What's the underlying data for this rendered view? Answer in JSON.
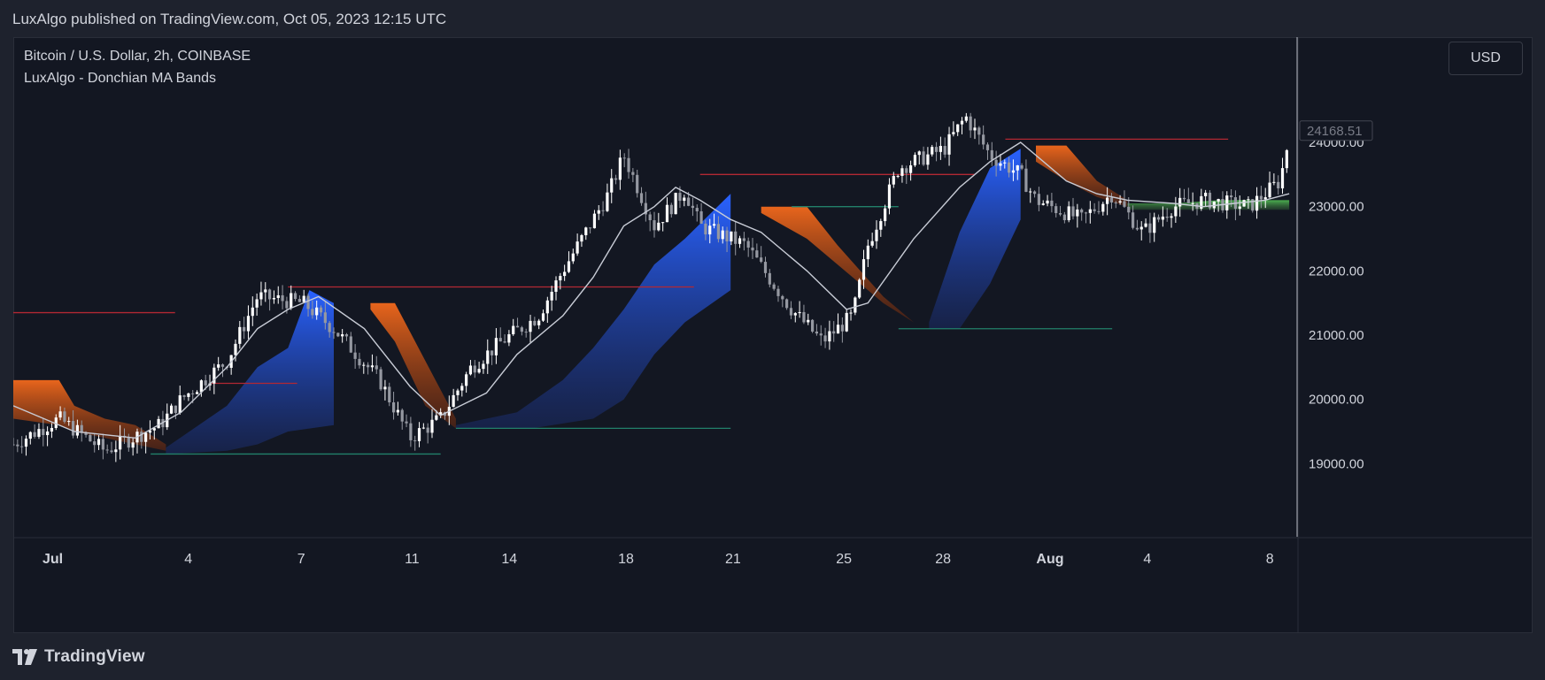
{
  "header": {
    "published": "LuxAlgo published on TradingView.com, Oct 05, 2023 12:15 UTC"
  },
  "legend": {
    "title": "Bitcoin / U.S. Dollar, 2h, COINBASE",
    "indicator": "LuxAlgo - Donchian MA Bands"
  },
  "currency": "USD",
  "footer": {
    "brand": "TradingView"
  },
  "colors": {
    "bg": "#131722",
    "upper_band": "#e8651c",
    "lower_band": "#2962ff",
    "mixed": "#4caf50",
    "ma": "#c8ccd6",
    "resistance": "#b22833",
    "support": "#22806a",
    "candle_up": "#ffffff",
    "candle_down": "#9598a1"
  },
  "chart_data": {
    "type": "candlestick",
    "symbol": "Bitcoin / U.S. Dollar",
    "interval": "2h",
    "exchange": "COINBASE",
    "ylim": [
      18000,
      25500
    ],
    "y_ticks": [
      "19000.00",
      "20000.00",
      "21000.00",
      "22000.00",
      "23000.00",
      "24000.00"
    ],
    "last_price": "24168.51",
    "x_tick_labels": [
      "Jul",
      "4",
      "7",
      "11",
      "14",
      "18",
      "21",
      "25",
      "28",
      "Aug",
      "4",
      "8"
    ],
    "price_path": [
      [
        0,
        19300
      ],
      [
        1.5,
        19700
      ],
      [
        3,
        19200
      ],
      [
        4.8,
        19600
      ],
      [
        5.5,
        20000
      ],
      [
        7,
        20600
      ],
      [
        8,
        21600
      ],
      [
        9.5,
        21500
      ],
      [
        10.5,
        21100
      ],
      [
        12,
        20300
      ],
      [
        13,
        19400
      ],
      [
        14,
        19700
      ],
      [
        15,
        20500
      ],
      [
        16,
        20900
      ],
      [
        17.2,
        21300
      ],
      [
        18,
        22000
      ],
      [
        19.5,
        23200
      ],
      [
        20,
        23800
      ],
      [
        21,
        22700
      ],
      [
        22,
        23250
      ],
      [
        22.5,
        22700
      ],
      [
        24,
        22400
      ],
      [
        25.5,
        21400
      ],
      [
        26.5,
        20900
      ],
      [
        27.5,
        21300
      ],
      [
        28,
        22400
      ],
      [
        29,
        23600
      ],
      [
        30.5,
        23900
      ],
      [
        31.2,
        24400
      ],
      [
        32,
        23800
      ],
      [
        33,
        23500
      ],
      [
        33.5,
        23100
      ],
      [
        35,
        22800
      ],
      [
        36,
        23200
      ],
      [
        37,
        22600
      ],
      [
        38,
        23000
      ],
      [
        39,
        23100
      ],
      [
        40.5,
        23000
      ],
      [
        41.5,
        23400
      ],
      [
        41.8,
        24100
      ]
    ],
    "ma_path": [
      [
        0,
        19900
      ],
      [
        2,
        19500
      ],
      [
        4,
        19400
      ],
      [
        5.5,
        19800
      ],
      [
        7,
        20500
      ],
      [
        8,
        21100
      ],
      [
        9,
        21400
      ],
      [
        10,
        21600
      ],
      [
        11.5,
        21100
      ],
      [
        13,
        20200
      ],
      [
        14,
        19750
      ],
      [
        15.5,
        20100
      ],
      [
        16.5,
        20700
      ],
      [
        18,
        21300
      ],
      [
        19,
        21900
      ],
      [
        20,
        22700
      ],
      [
        21,
        23000
      ],
      [
        21.7,
        23300
      ],
      [
        22.5,
        23100
      ],
      [
        23.5,
        22800
      ],
      [
        24.5,
        22600
      ],
      [
        26,
        22000
      ],
      [
        27.3,
        21400
      ],
      [
        28,
        21500
      ],
      [
        29.5,
        22500
      ],
      [
        31,
        23300
      ],
      [
        32,
        23700
      ],
      [
        33,
        24000
      ],
      [
        34.5,
        23400
      ],
      [
        35.5,
        23200
      ],
      [
        36.5,
        23100
      ],
      [
        38,
        23050
      ],
      [
        39,
        23000
      ],
      [
        40,
        23050
      ],
      [
        41,
        23100
      ],
      [
        41.8,
        23200
      ]
    ],
    "bands": [
      {
        "kind": "upper",
        "x0": 0,
        "x1": 5,
        "top": [
          [
            0,
            20300
          ],
          [
            1.5,
            20300
          ],
          [
            2,
            19900
          ],
          [
            3,
            19700
          ],
          [
            4,
            19600
          ],
          [
            5,
            19300
          ]
        ],
        "bottom": [
          [
            0,
            19700
          ],
          [
            1.5,
            19600
          ],
          [
            2,
            19500
          ],
          [
            3,
            19400
          ],
          [
            4,
            19300
          ],
          [
            5,
            19200
          ]
        ]
      },
      {
        "kind": "lower",
        "x0": 5,
        "x1": 10.5,
        "top": [
          [
            5,
            19250
          ],
          [
            7,
            19900
          ],
          [
            8,
            20500
          ],
          [
            9,
            20800
          ],
          [
            9.7,
            21700
          ],
          [
            10.5,
            21500
          ]
        ],
        "bottom": [
          [
            5,
            19150
          ],
          [
            7,
            19200
          ],
          [
            8,
            19300
          ],
          [
            9,
            19500
          ],
          [
            10.5,
            19600
          ]
        ]
      },
      {
        "kind": "upper",
        "x0": 11.7,
        "x1": 14.5,
        "top": [
          [
            11.7,
            21500
          ],
          [
            12.5,
            21500
          ],
          [
            13.5,
            20600
          ],
          [
            14.5,
            19700
          ]
        ],
        "bottom": [
          [
            11.7,
            21400
          ],
          [
            12.5,
            20900
          ],
          [
            13.5,
            19900
          ],
          [
            14.5,
            19550
          ]
        ]
      },
      {
        "kind": "lower",
        "x0": 14.5,
        "x1": 23.5,
        "top": [
          [
            14.5,
            19600
          ],
          [
            16.5,
            19800
          ],
          [
            18,
            20300
          ],
          [
            19,
            20800
          ],
          [
            20,
            21400
          ],
          [
            21,
            22100
          ],
          [
            22,
            22500
          ],
          [
            23.5,
            23200
          ]
        ],
        "bottom": [
          [
            14.5,
            19550
          ],
          [
            17,
            19550
          ],
          [
            19,
            19700
          ],
          [
            20,
            20000
          ],
          [
            21,
            20700
          ],
          [
            22,
            21200
          ],
          [
            23.5,
            21700
          ]
        ]
      },
      {
        "kind": "upper",
        "x0": 24.5,
        "x1": 29.5,
        "top": [
          [
            24.5,
            23000
          ],
          [
            26,
            23000
          ],
          [
            27,
            22400
          ],
          [
            28.5,
            21600
          ],
          [
            29.5,
            21200
          ]
        ],
        "bottom": [
          [
            24.5,
            22900
          ],
          [
            26,
            22500
          ],
          [
            27,
            22100
          ],
          [
            28.5,
            21500
          ],
          [
            29.5,
            21200
          ]
        ]
      },
      {
        "kind": "lower",
        "x0": 30,
        "x1": 33,
        "top": [
          [
            30,
            21200
          ],
          [
            31,
            22600
          ],
          [
            32,
            23600
          ],
          [
            33,
            23900
          ]
        ],
        "bottom": [
          [
            30,
            21100
          ],
          [
            31,
            21100
          ],
          [
            32,
            21800
          ],
          [
            33,
            22800
          ]
        ]
      },
      {
        "kind": "upper",
        "x0": 33.5,
        "x1": 36.5,
        "top": [
          [
            33.5,
            23950
          ],
          [
            34.5,
            23950
          ],
          [
            35.5,
            23400
          ],
          [
            36.5,
            23100
          ]
        ],
        "bottom": [
          [
            33.5,
            23700
          ],
          [
            34.5,
            23400
          ],
          [
            35.5,
            23150
          ],
          [
            36.5,
            23000
          ]
        ]
      },
      {
        "kind": "mixed",
        "x0": 36.5,
        "x1": 41.8,
        "top": [
          [
            36.5,
            23050
          ],
          [
            38,
            23050
          ],
          [
            39.5,
            23100
          ],
          [
            41.8,
            23100
          ]
        ],
        "bottom": [
          [
            36.5,
            22950
          ],
          [
            38,
            22950
          ],
          [
            39.5,
            22950
          ],
          [
            41.8,
            22950
          ]
        ]
      }
    ],
    "resistance_levels": [
      {
        "x0": 0,
        "x1": 5.3,
        "y": 21350
      },
      {
        "x0": 9,
        "x1": 22.3,
        "y": 21750
      },
      {
        "x0": 6.5,
        "x1": 9.3,
        "y": 20250
      },
      {
        "x0": 22.5,
        "x1": 31.5,
        "y": 23500
      },
      {
        "x0": 32.5,
        "x1": 39.8,
        "y": 24050
      }
    ],
    "support_levels": [
      {
        "x0": 4.5,
        "x1": 14,
        "y": 19150
      },
      {
        "x0": 14.5,
        "x1": 23.5,
        "y": 19550
      },
      {
        "x0": 29,
        "x1": 36,
        "y": 21100
      },
      {
        "x0": 25.5,
        "x1": 29,
        "y": 23000
      }
    ]
  }
}
